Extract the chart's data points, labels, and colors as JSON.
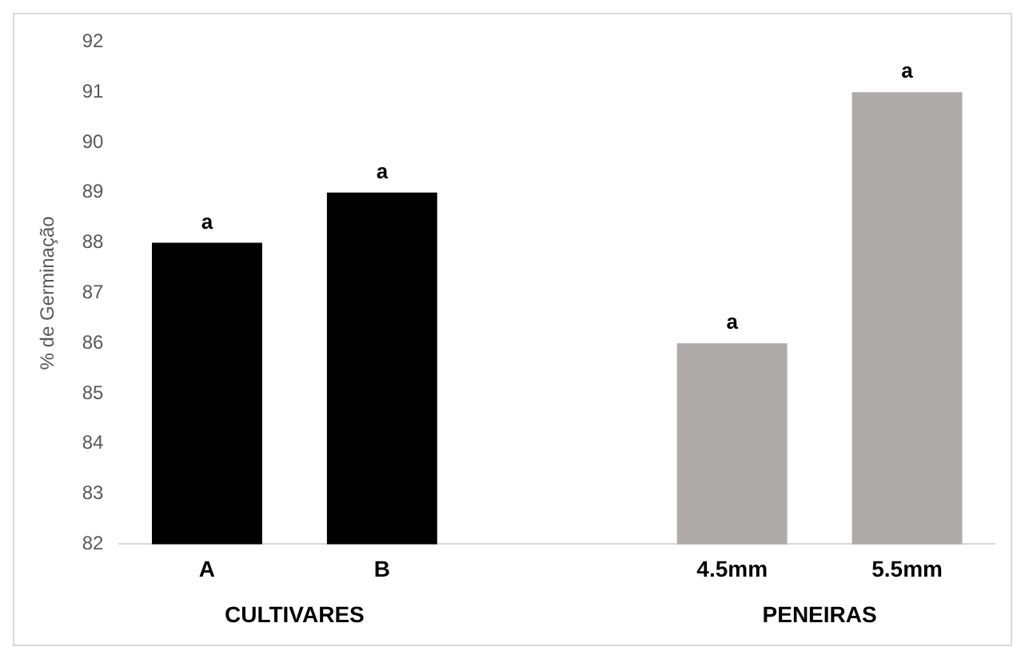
{
  "chart_data": {
    "type": "bar",
    "ylabel": "% de Germinação",
    "categories": [
      "A",
      "B",
      null,
      "4.5mm",
      "5.5mm"
    ],
    "values": [
      88,
      89,
      null,
      86,
      91
    ],
    "colors": [
      "#000000",
      "#000000",
      "#000000",
      "#afabab",
      "#afabab"
    ],
    "value_labels": [
      "a",
      "a",
      null,
      "a",
      "a"
    ],
    "annotations": [
      "CULTIVARES",
      "PENEIRAS"
    ],
    "ylim": [
      82,
      92
    ],
    "yticks": [
      82,
      83,
      84,
      85,
      86,
      87,
      88,
      89,
      90,
      91,
      92
    ],
    "grid": false,
    "legend": false
  }
}
